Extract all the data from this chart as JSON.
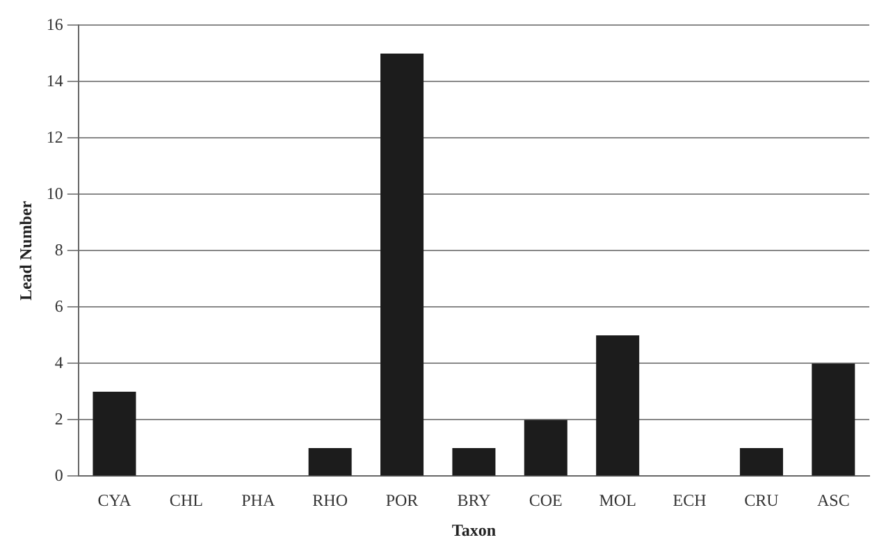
{
  "chart_data": {
    "type": "bar",
    "xlabel": "Taxon",
    "ylabel": "Lead Number",
    "categories": [
      "CYA",
      "CHL",
      "PHA",
      "RHO",
      "POR",
      "BRY",
      "COE",
      "MOL",
      "ECH",
      "CRU",
      "ASC"
    ],
    "values": [
      3,
      0,
      0,
      1,
      15,
      1,
      2,
      5,
      0,
      1,
      4
    ],
    "color": "#1c1c1c",
    "ylim": [
      0,
      16
    ],
    "yticks": [
      0,
      2,
      4,
      6,
      8,
      10,
      12,
      14,
      16
    ],
    "grid": "y",
    "legend": false
  }
}
